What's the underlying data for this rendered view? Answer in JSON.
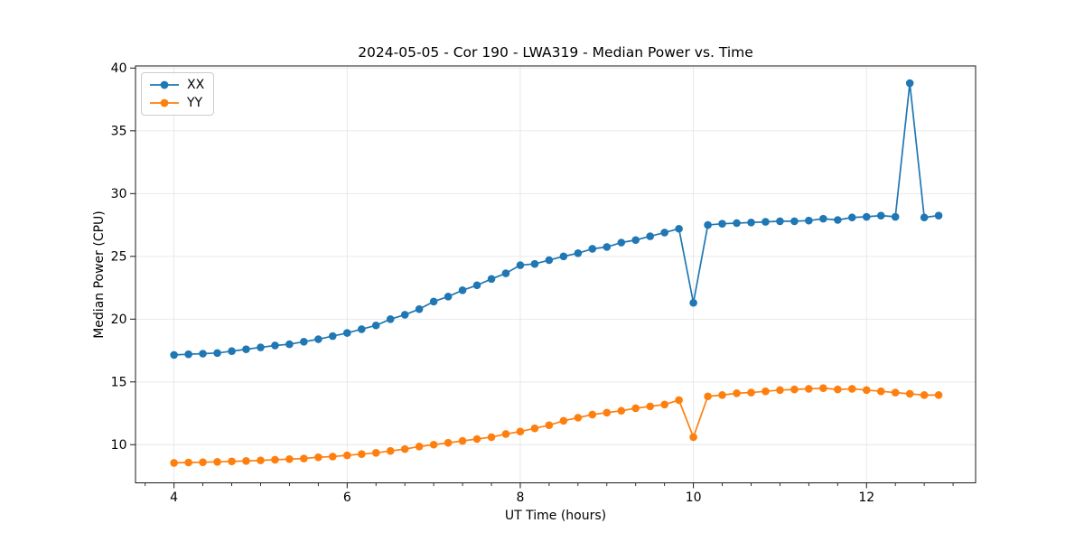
{
  "chart_data": {
    "type": "line",
    "title": "2024-05-05 - Cor 190 - LWA319 - Median Power vs. Time",
    "xlabel": "UT Time (hours)",
    "ylabel": "Median Power (CPU)",
    "xlim": [
      3.555,
      13.26
    ],
    "ylim": [
      6.96,
      40.17
    ],
    "xticks": [
      4,
      6,
      8,
      10,
      12
    ],
    "yticks": [
      10,
      15,
      20,
      25,
      30,
      35,
      40
    ],
    "x_minor_step": 0.333333,
    "grid": true,
    "grid_color": "#e6e6e6",
    "spine_color": "#1a1a1a",
    "legend_position": "upper-left",
    "x": [
      4.0,
      4.167,
      4.333,
      4.5,
      4.667,
      4.833,
      5.0,
      5.167,
      5.333,
      5.5,
      5.667,
      5.833,
      6.0,
      6.167,
      6.333,
      6.5,
      6.667,
      6.833,
      7.0,
      7.167,
      7.333,
      7.5,
      7.667,
      7.833,
      8.0,
      8.167,
      8.333,
      8.5,
      8.667,
      8.833,
      9.0,
      9.167,
      9.333,
      9.5,
      9.667,
      9.833,
      10.0,
      10.167,
      10.333,
      10.5,
      10.667,
      10.833,
      11.0,
      11.167,
      11.333,
      11.5,
      11.667,
      11.833,
      12.0,
      12.167,
      12.333,
      12.5,
      12.667,
      12.833
    ],
    "series": [
      {
        "name": "XX",
        "color": "#1f77b4",
        "values": [
          17.15,
          17.2,
          17.25,
          17.3,
          17.45,
          17.6,
          17.75,
          17.9,
          18.0,
          18.2,
          18.4,
          18.65,
          18.9,
          19.2,
          19.5,
          20.0,
          20.35,
          20.8,
          21.4,
          21.8,
          22.3,
          22.7,
          23.2,
          23.65,
          24.3,
          24.4,
          24.7,
          25.0,
          25.25,
          25.6,
          25.75,
          26.1,
          26.3,
          26.6,
          26.9,
          27.2,
          21.3,
          27.5,
          27.6,
          27.65,
          27.7,
          27.75,
          27.8,
          27.8,
          27.85,
          28.0,
          27.9,
          28.1,
          28.15,
          28.25,
          28.15,
          38.8,
          28.1,
          28.25
        ]
      },
      {
        "name": "YY",
        "color": "#ff7f0e",
        "values": [
          8.55,
          8.58,
          8.6,
          8.63,
          8.67,
          8.7,
          8.75,
          8.8,
          8.85,
          8.9,
          9.0,
          9.05,
          9.15,
          9.25,
          9.35,
          9.5,
          9.65,
          9.85,
          10.0,
          10.15,
          10.3,
          10.45,
          10.6,
          10.85,
          11.05,
          11.3,
          11.55,
          11.9,
          12.15,
          12.4,
          12.55,
          12.7,
          12.9,
          13.05,
          13.2,
          13.55,
          10.6,
          13.85,
          13.95,
          14.1,
          14.15,
          14.25,
          14.35,
          14.4,
          14.45,
          14.5,
          14.4,
          14.45,
          14.35,
          14.25,
          14.15,
          14.05,
          13.95,
          13.95
        ]
      }
    ]
  }
}
